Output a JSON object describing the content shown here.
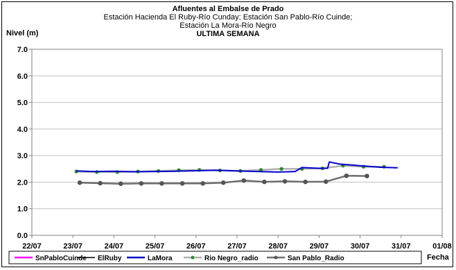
{
  "chart_data": {
    "type": "line",
    "title": "Afluentes al Embalse de Prado",
    "subtitle_lines": [
      "Estación Hacienda El Ruby-Río Cunday; Estación San Pablo-Río Cuinde;",
      "Estación La Mora-Río Negro"
    ],
    "subtitle_bold": "ULTIMA SEMANA",
    "ylabel": "Nivel (m)",
    "xlabel": "Fecha",
    "ylim": [
      0,
      7
    ],
    "yticks": [
      "0.0",
      "1.0",
      "2.0",
      "3.0",
      "4.0",
      "5.0",
      "6.0",
      "7.0"
    ],
    "xlim": [
      "2013-07-22",
      "2013-08-01"
    ],
    "xticks": [
      "22/07",
      "23/07",
      "24/07",
      "25/07",
      "26/07",
      "27/07",
      "28/07",
      "29/07",
      "30/07",
      "31/07",
      "01/08"
    ],
    "grid": true,
    "legend_position": "bottom",
    "series": [
      {
        "name": "SnPabloCuinde",
        "color": "#ff00ff",
        "marker": "none",
        "points": []
      },
      {
        "name": "ElRuby",
        "color": "#000000",
        "marker": "none",
        "points": []
      },
      {
        "name": "LaMora",
        "color": "#0000cc",
        "marker": "none",
        "points": [
          [
            "2013-07-23 02:00",
            2.42
          ],
          [
            "2013-07-23 12:00",
            2.4
          ],
          [
            "2013-07-24 00:00",
            2.41
          ],
          [
            "2013-07-24 12:00",
            2.39
          ],
          [
            "2013-07-25 00:00",
            2.4
          ],
          [
            "2013-07-25 12:00",
            2.41
          ],
          [
            "2013-07-26 00:00",
            2.43
          ],
          [
            "2013-07-26 12:00",
            2.45
          ],
          [
            "2013-07-27 00:00",
            2.42
          ],
          [
            "2013-07-27 12:00",
            2.4
          ],
          [
            "2013-07-28 00:00",
            2.38
          ],
          [
            "2013-07-28 10:00",
            2.4
          ],
          [
            "2013-07-28 14:00",
            2.55
          ],
          [
            "2013-07-29 00:00",
            2.52
          ],
          [
            "2013-07-29 05:00",
            2.52
          ],
          [
            "2013-07-29 06:00",
            2.76
          ],
          [
            "2013-07-29 12:00",
            2.68
          ],
          [
            "2013-07-30 00:00",
            2.62
          ],
          [
            "2013-07-30 12:00",
            2.56
          ],
          [
            "2013-07-30 22:00",
            2.54
          ]
        ]
      },
      {
        "name": "Rio Negro_radio",
        "color": "#b0b0b0",
        "marker": "dot",
        "markerColor": "#2e8b2e",
        "points": [
          [
            "2013-07-23 02:00",
            2.4
          ],
          [
            "2013-07-23 14:00",
            2.38
          ],
          [
            "2013-07-24 02:00",
            2.38
          ],
          [
            "2013-07-24 14:00",
            2.4
          ],
          [
            "2013-07-25 02:00",
            2.42
          ],
          [
            "2013-07-25 14:00",
            2.45
          ],
          [
            "2013-07-26 02:00",
            2.46
          ],
          [
            "2013-07-26 14:00",
            2.44
          ],
          [
            "2013-07-27 02:00",
            2.42
          ],
          [
            "2013-07-27 14:00",
            2.46
          ],
          [
            "2013-07-28 02:00",
            2.5
          ],
          [
            "2013-07-28 14:00",
            2.5
          ],
          [
            "2013-07-29 02:00",
            2.52
          ],
          [
            "2013-07-29 14:00",
            2.62
          ],
          [
            "2013-07-30 02:00",
            2.58
          ],
          [
            "2013-07-30 14:00",
            2.58
          ]
        ]
      },
      {
        "name": "San Pablo_Radio",
        "color": "#6e6e6e",
        "marker": "dot",
        "markerColor": "#555555",
        "points": [
          [
            "2013-07-23 04:00",
            1.98
          ],
          [
            "2013-07-23 16:00",
            1.96
          ],
          [
            "2013-07-24 04:00",
            1.94
          ],
          [
            "2013-07-24 16:00",
            1.95
          ],
          [
            "2013-07-25 04:00",
            1.95
          ],
          [
            "2013-07-25 16:00",
            1.95
          ],
          [
            "2013-07-26 04:00",
            1.95
          ],
          [
            "2013-07-26 16:00",
            1.98
          ],
          [
            "2013-07-27 04:00",
            2.06
          ],
          [
            "2013-07-27 16:00",
            2.01
          ],
          [
            "2013-07-28 04:00",
            2.03
          ],
          [
            "2013-07-28 16:00",
            2.01
          ],
          [
            "2013-07-29 04:00",
            2.02
          ],
          [
            "2013-07-29 16:00",
            2.24
          ],
          [
            "2013-07-30 04:00",
            2.23
          ]
        ]
      }
    ]
  }
}
